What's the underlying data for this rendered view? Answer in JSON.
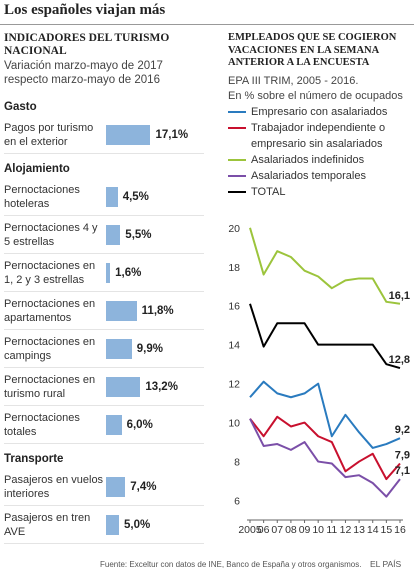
{
  "title": "Los españoles viajan más",
  "chart_data": [
    {
      "type": "bar",
      "title": "INDICADORES DEL TURISMO NACIONAL",
      "subtitle": "Variación marzo-mayo de 2017 respecto marzo-mayo de 2016",
      "color": "#8db4dc",
      "xlim": [
        0,
        20
      ],
      "groups": [
        {
          "name": "Gasto",
          "categories": [
            "Pagos por turismo en el exterior"
          ],
          "values": [
            17.1
          ],
          "value_labels": [
            "17,1%"
          ]
        },
        {
          "name": "Alojamiento",
          "categories": [
            "Pernoctaciones hoteleras",
            "Pernoctaciones 4 y 5 estrellas",
            "Pernoctaciones en 1, 2 y 3 estrellas",
            "Pernoctaciones en apartamentos",
            "Pernoctaciones en campings",
            "Pernoctaciones en turismo rural",
            "Pernoctaciones totales"
          ],
          "values": [
            4.5,
            5.5,
            1.6,
            11.8,
            9.9,
            13.2,
            6.0
          ],
          "value_labels": [
            "4,5%",
            "5,5%",
            "1,6%",
            "11,8%",
            "9,9%",
            "13,2%",
            "6,0%"
          ]
        },
        {
          "name": "Transporte",
          "categories": [
            "Pasajeros en vuelos interiores",
            "Pasajeros en tren AVE"
          ],
          "values": [
            7.4,
            5.0
          ],
          "value_labels": [
            "7,4%",
            "5,0%"
          ]
        }
      ]
    },
    {
      "type": "line",
      "title": "EMPLEADOS QUE SE COGIERON VACACIONES EN LA SEMANA ANTERIOR A LA ENCUESTA",
      "subtitle": "EPA III TRIM, 2005 - 2016.",
      "y_label": "En % sobre el número de ocupados",
      "categories": [
        "2005",
        "06",
        "07",
        "08",
        "09",
        "10",
        "11",
        "12",
        "13",
        "14",
        "15",
        "16"
      ],
      "ylim": [
        5,
        20.4
      ],
      "yticks": [
        6,
        8,
        10,
        12,
        14,
        16,
        18,
        20
      ],
      "series": [
        {
          "name": "Empresario con asalariados",
          "color": "#2a7bbf",
          "values": [
            11.3,
            12.1,
            11.5,
            11.3,
            11.5,
            12.0,
            9.3,
            10.4,
            9.5,
            8.7,
            8.9,
            9.2
          ],
          "value_labels": [
            null,
            null,
            null,
            null,
            null,
            null,
            null,
            null,
            null,
            null,
            null,
            "9,2"
          ]
        },
        {
          "name": "Trabajador independiente o empresario sin asalariados",
          "color": "#c8102e",
          "values": [
            10.2,
            9.3,
            10.3,
            9.8,
            10.0,
            9.3,
            9.0,
            7.5,
            8.0,
            8.4,
            7.1,
            7.9
          ],
          "value_labels": [
            null,
            null,
            null,
            null,
            null,
            null,
            null,
            null,
            null,
            null,
            null,
            "7,9"
          ]
        },
        {
          "name": "Asalariados indefinidos",
          "color": "#9cc43c",
          "values": [
            20.0,
            17.6,
            18.8,
            18.5,
            17.8,
            17.5,
            16.9,
            17.3,
            17.4,
            17.4,
            16.2,
            16.1
          ],
          "value_labels": [
            null,
            null,
            null,
            null,
            null,
            null,
            null,
            null,
            null,
            null,
            null,
            "16,1"
          ]
        },
        {
          "name": "Asalariados temporales",
          "color": "#7b4fa8",
          "values": [
            10.2,
            8.8,
            8.9,
            8.6,
            9.0,
            8.0,
            7.9,
            7.2,
            7.3,
            6.9,
            6.2,
            7.1
          ],
          "value_labels": [
            null,
            null,
            null,
            null,
            null,
            null,
            null,
            null,
            null,
            null,
            null,
            "7,1"
          ]
        },
        {
          "name": "TOTAL",
          "color": "#000000",
          "values": [
            16.1,
            13.9,
            15.1,
            15.1,
            15.1,
            14.0,
            14.0,
            14.0,
            14.0,
            14.0,
            13.0,
            12.8
          ],
          "value_labels": [
            null,
            null,
            null,
            null,
            null,
            null,
            null,
            null,
            null,
            null,
            null,
            "12,8"
          ]
        }
      ]
    }
  ],
  "footer": {
    "source": "Fuente: Exceltur con datos de INE, Banco de España y otros organismos.",
    "brand": "EL PAÍS"
  }
}
